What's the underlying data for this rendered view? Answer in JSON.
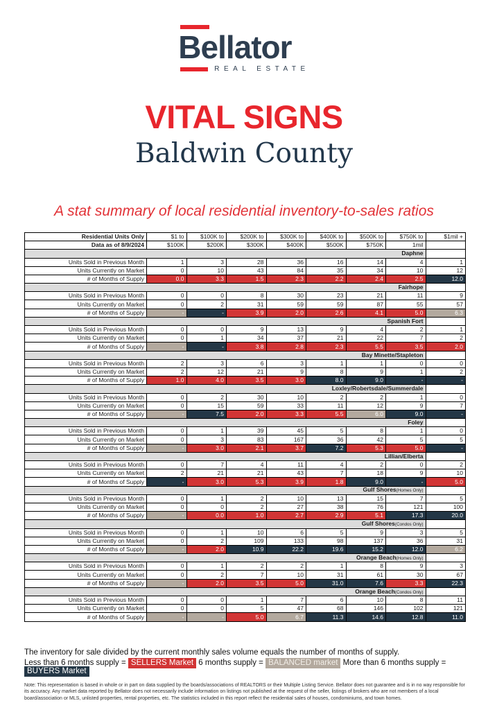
{
  "logo": {
    "brand": "Bellator",
    "tagline": "REAL ESTATE"
  },
  "header": {
    "title": "VITAL SIGNS",
    "subtitle": "Baldwin County",
    "description": "A stat summary of local residential inventory-to-sales ratios"
  },
  "colors": {
    "brand_red": "#e8262d",
    "brand_navy": "#2e3e50",
    "sellers_red": "#d23535",
    "buyers_navy": "#243746",
    "balanced_tan": "#b3a99e",
    "area_band_gray": "#dcdcdc"
  },
  "table": {
    "corner": {
      "title": "Residential Units Only",
      "subtitle": "Data as of 8/9/2024"
    },
    "price_columns": [
      {
        "line1": "$1 to",
        "line2": "$100K"
      },
      {
        "line1": "$100K to",
        "line2": "$200K"
      },
      {
        "line1": "$200K to",
        "line2": "$300K"
      },
      {
        "line1": "$300K to",
        "line2": "$400K"
      },
      {
        "line1": "$400K to",
        "line2": "$500K"
      },
      {
        "line1": "$500K to",
        "line2": "$750K"
      },
      {
        "line1": "$750K to",
        "line2": "1mil"
      },
      {
        "line1": "$1mil +",
        "line2": ""
      }
    ],
    "metric_labels": [
      "Units Sold in Previous Month",
      "Units Currently on Market",
      "# of Months of Supply"
    ],
    "areas": [
      {
        "name": "Daphne",
        "note": "",
        "units_sold": [
          "1",
          "3",
          "28",
          "36",
          "16",
          "14",
          "4",
          "1"
        ],
        "units_on_market": [
          "0",
          "10",
          "43",
          "84",
          "35",
          "34",
          "10",
          "12"
        ],
        "months_supply": [
          {
            "value": "0.0",
            "market": "sellers"
          },
          {
            "value": "3.3",
            "market": "sellers"
          },
          {
            "value": "1.5",
            "market": "sellers"
          },
          {
            "value": "2.3",
            "market": "sellers"
          },
          {
            "value": "2.2",
            "market": "sellers"
          },
          {
            "value": "2.4",
            "market": "sellers"
          },
          {
            "value": "2.5",
            "market": "sellers"
          },
          {
            "value": "12.0",
            "market": "buyers"
          }
        ]
      },
      {
        "name": "Fairhope",
        "note": "",
        "units_sold": [
          "0",
          "0",
          "8",
          "30",
          "23",
          "21",
          "11",
          "9"
        ],
        "units_on_market": [
          "0",
          "2",
          "31",
          "59",
          "59",
          "87",
          "55",
          "57"
        ],
        "months_supply": [
          {
            "value": "-",
            "market": "balanced"
          },
          {
            "value": "-",
            "market": "buyers"
          },
          {
            "value": "3.9",
            "market": "sellers"
          },
          {
            "value": "2.0",
            "market": "sellers"
          },
          {
            "value": "2.6",
            "market": "sellers"
          },
          {
            "value": "4.1",
            "market": "sellers"
          },
          {
            "value": "5.0",
            "market": "sellers"
          },
          {
            "value": "6.3",
            "market": "balanced"
          }
        ]
      },
      {
        "name": "Spanish Fort",
        "note": "",
        "units_sold": [
          "0",
          "0",
          "9",
          "13",
          "9",
          "4",
          "2",
          "1"
        ],
        "units_on_market": [
          "0",
          "1",
          "34",
          "37",
          "21",
          "22",
          "7",
          "2"
        ],
        "months_supply": [
          {
            "value": "-",
            "market": "balanced"
          },
          {
            "value": "-",
            "market": "buyers"
          },
          {
            "value": "3.8",
            "market": "sellers"
          },
          {
            "value": "2.8",
            "market": "sellers"
          },
          {
            "value": "2.3",
            "market": "sellers"
          },
          {
            "value": "5.5",
            "market": "sellers"
          },
          {
            "value": "3.5",
            "market": "sellers"
          },
          {
            "value": "2.0",
            "market": "sellers"
          }
        ]
      },
      {
        "name": "Bay Minette/Stapleton",
        "note": "",
        "units_sold": [
          "2",
          "3",
          "6",
          "3",
          "1",
          "1",
          "0",
          "0"
        ],
        "units_on_market": [
          "2",
          "12",
          "21",
          "9",
          "8",
          "9",
          "1",
          "2"
        ],
        "months_supply": [
          {
            "value": "1.0",
            "market": "sellers"
          },
          {
            "value": "4.0",
            "market": "sellers"
          },
          {
            "value": "3.5",
            "market": "sellers"
          },
          {
            "value": "3.0",
            "market": "sellers"
          },
          {
            "value": "8.0",
            "market": "buyers"
          },
          {
            "value": "9.0",
            "market": "buyers"
          },
          {
            "value": "-",
            "market": "buyers"
          },
          {
            "value": "-",
            "market": "buyers"
          }
        ]
      },
      {
        "name": "Loxley/Robertsdale/Summerdale",
        "note": "",
        "units_sold": [
          "0",
          "2",
          "30",
          "10",
          "2",
          "2",
          "1",
          "0"
        ],
        "units_on_market": [
          "0",
          "15",
          "59",
          "33",
          "11",
          "12",
          "9",
          "7"
        ],
        "months_supply": [
          {
            "value": "-",
            "market": "balanced"
          },
          {
            "value": "7.5",
            "market": "buyers"
          },
          {
            "value": "2.0",
            "market": "sellers"
          },
          {
            "value": "3.3",
            "market": "sellers"
          },
          {
            "value": "5.5",
            "market": "sellers"
          },
          {
            "value": "6.0",
            "market": "balanced"
          },
          {
            "value": "9.0",
            "market": "buyers"
          },
          {
            "value": "-",
            "market": "buyers"
          }
        ]
      },
      {
        "name": "Foley",
        "note": "",
        "units_sold": [
          "0",
          "1",
          "39",
          "45",
          "5",
          "8",
          "1",
          "0"
        ],
        "units_on_market": [
          "0",
          "3",
          "83",
          "167",
          "36",
          "42",
          "5",
          "5"
        ],
        "months_supply": [
          {
            "value": "-",
            "market": "balanced"
          },
          {
            "value": "3.0",
            "market": "sellers"
          },
          {
            "value": "2.1",
            "market": "sellers"
          },
          {
            "value": "3.7",
            "market": "sellers"
          },
          {
            "value": "7.2",
            "market": "buyers"
          },
          {
            "value": "5.3",
            "market": "sellers"
          },
          {
            "value": "5.0",
            "market": "sellers"
          },
          {
            "value": "-",
            "market": "buyers"
          }
        ]
      },
      {
        "name": "Lillian/Elberta",
        "note": "",
        "units_sold": [
          "0",
          "7",
          "4",
          "11",
          "4",
          "2",
          "0",
          "2"
        ],
        "units_on_market": [
          "2",
          "21",
          "21",
          "43",
          "7",
          "18",
          "9",
          "10"
        ],
        "months_supply": [
          {
            "value": "-",
            "market": "buyers"
          },
          {
            "value": "3.0",
            "market": "sellers"
          },
          {
            "value": "5.3",
            "market": "sellers"
          },
          {
            "value": "3.9",
            "market": "sellers"
          },
          {
            "value": "1.8",
            "market": "sellers"
          },
          {
            "value": "9.0",
            "market": "buyers"
          },
          {
            "value": "-",
            "market": "buyers"
          },
          {
            "value": "5.0",
            "market": "sellers"
          }
        ]
      },
      {
        "name": "Gulf Shores",
        "note": "(Homes Only)",
        "units_sold": [
          "0",
          "1",
          "2",
          "10",
          "13",
          "15",
          "7",
          "5"
        ],
        "units_on_market": [
          "0",
          "0",
          "2",
          "27",
          "38",
          "76",
          "121",
          "100"
        ],
        "months_supply": [
          {
            "value": "-",
            "market": "balanced"
          },
          {
            "value": "0.0",
            "market": "sellers"
          },
          {
            "value": "1.0",
            "market": "sellers"
          },
          {
            "value": "2.7",
            "market": "sellers"
          },
          {
            "value": "2.9",
            "market": "sellers"
          },
          {
            "value": "5.1",
            "market": "sellers"
          },
          {
            "value": "17.3",
            "market": "buyers"
          },
          {
            "value": "20.0",
            "market": "buyers"
          }
        ]
      },
      {
        "name": "Gulf Shores",
        "note": "(Condos Only)",
        "units_sold": [
          "0",
          "1",
          "10",
          "6",
          "5",
          "9",
          "3",
          "5"
        ],
        "units_on_market": [
          "0",
          "2",
          "109",
          "133",
          "98",
          "137",
          "36",
          "31"
        ],
        "months_supply": [
          {
            "value": "-",
            "market": "balanced"
          },
          {
            "value": "2.0",
            "market": "sellers"
          },
          {
            "value": "10.9",
            "market": "buyers"
          },
          {
            "value": "22.2",
            "market": "buyers"
          },
          {
            "value": "19.6",
            "market": "buyers"
          },
          {
            "value": "15.2",
            "market": "buyers"
          },
          {
            "value": "12.0",
            "market": "buyers"
          },
          {
            "value": "6.2",
            "market": "balanced"
          }
        ]
      },
      {
        "name": "Orange Beach",
        "note": "(Homes Only)",
        "units_sold": [
          "0",
          "1",
          "2",
          "2",
          "1",
          "8",
          "9",
          "3"
        ],
        "units_on_market": [
          "0",
          "2",
          "7",
          "10",
          "31",
          "61",
          "30",
          "67"
        ],
        "months_supply": [
          {
            "value": "-",
            "market": "balanced"
          },
          {
            "value": "2.0",
            "market": "sellers"
          },
          {
            "value": "3.5",
            "market": "sellers"
          },
          {
            "value": "5.0",
            "market": "sellers"
          },
          {
            "value": "31.0",
            "market": "buyers"
          },
          {
            "value": "7.6",
            "market": "buyers"
          },
          {
            "value": "3.3",
            "market": "sellers"
          },
          {
            "value": "22.3",
            "market": "buyers"
          }
        ]
      },
      {
        "name": "Orange Beach",
        "note": "(Condos Only)",
        "units_sold": [
          "0",
          "0",
          "1",
          "7",
          "6",
          "10",
          "8",
          "11"
        ],
        "units_on_market": [
          "0",
          "0",
          "5",
          "47",
          "68",
          "146",
          "102",
          "121"
        ],
        "months_supply": [
          {
            "value": "-",
            "market": "balanced"
          },
          {
            "value": "-",
            "market": "balanced"
          },
          {
            "value": "5.0",
            "market": "sellers"
          },
          {
            "value": "6.7",
            "market": "balanced"
          },
          {
            "value": "11.3",
            "market": "buyers"
          },
          {
            "value": "14.6",
            "market": "buyers"
          },
          {
            "value": "12.8",
            "market": "buyers"
          },
          {
            "value": "11.0",
            "market": "buyers"
          }
        ]
      }
    ]
  },
  "footer": {
    "supply_line": "The inventory for sale divided by the current monthly sales volume equals the number of months of supply.",
    "legend": {
      "sellers_prefix": "Less than 6 months supply =",
      "sellers_label": "SELLERS Market",
      "balanced_prefix": "6 months supply =",
      "balanced_label": "BALANCED market",
      "buyers_prefix": "More than 6 months supply =",
      "buyers_label": "BUYERS Market"
    },
    "note": "Note: This representation is based in whole or in part on data supplied by the boards/associations of REALTORS or their Multiple Listing Service. Bellator does not guarantee and is in no way responsible for its accuracy. Any market data reported by Bellator does not necessarily include information on listings not published at the request of the seller, listings of brokers who are not members of a local board/association or MLS, unlisted properties, rental properties, etc. The statistics included in this report reflect the residential sales of houses, condominiums, and town homes."
  }
}
